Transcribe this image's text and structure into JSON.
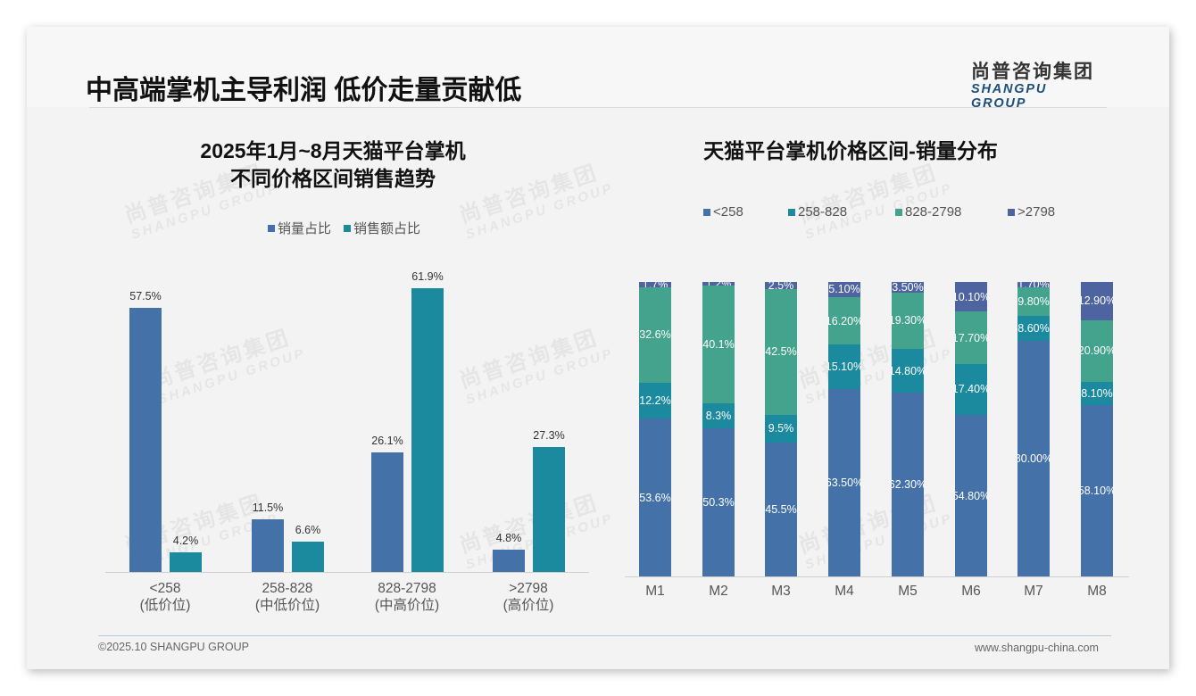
{
  "header": {
    "title": "中高端掌机主导利润 低价走量贡献低",
    "logo_cn": "尚普咨询集团",
    "logo_en": "SHANGPU GROUP"
  },
  "watermark": {
    "cn": "尚普咨询集团",
    "en": "SHANGPU GROUP"
  },
  "left_chart": {
    "title_line1": "2025年1月~8月天猫平台掌机",
    "title_line2": "不同价格区间销售趋势",
    "legend": [
      {
        "label": "销量占比",
        "color": "#4472a8"
      },
      {
        "label": "销售额占比",
        "color": "#1b8a9e"
      }
    ],
    "categories": [
      {
        "line1": "<258",
        "line2": "(低价位)"
      },
      {
        "line1": "258-828",
        "line2": "(中低价位)"
      },
      {
        "line1": "828-2798",
        "line2": "(中高价位)"
      },
      {
        "line1": ">2798",
        "line2": "(高价位)"
      }
    ],
    "labels": {
      "volume": [
        "57.5%",
        "11.5%",
        "26.1%",
        "4.8%"
      ],
      "revenue": [
        "4.2%",
        "6.6%",
        "61.9%",
        "27.3%"
      ]
    }
  },
  "right_chart": {
    "title": "天猫平台掌机价格区间-销量分布",
    "legend": [
      {
        "label": "<258",
        "color": "#4472a8"
      },
      {
        "label": "258-828",
        "color": "#1b8a9e"
      },
      {
        "label": "828-2798",
        "color": "#43a38c"
      },
      {
        "label": ">2798",
        "color": "#4e64a0"
      }
    ],
    "months": [
      "M1",
      "M2",
      "M3",
      "M4",
      "M5",
      "M6",
      "M7",
      "M8"
    ],
    "labels": [
      [
        "53.6%",
        "12.2%",
        "32.6%",
        "1.7%"
      ],
      [
        "50.3%",
        "8.3%",
        "40.1%",
        "1.2%"
      ],
      [
        "45.5%",
        "9.5%",
        "42.5%",
        "2.5%"
      ],
      [
        "63.50%",
        "15.10%",
        "16.20%",
        "5.10%"
      ],
      [
        "62.30%",
        "14.80%",
        "19.30%",
        "3.50%"
      ],
      [
        "54.80%",
        "17.40%",
        "17.70%",
        "10.10%"
      ],
      [
        "80.00%",
        "8.60%",
        "9.80%",
        "1.70%"
      ],
      [
        "58.10%",
        "8.10%",
        "20.90%",
        "12.90%"
      ]
    ]
  },
  "footer": {
    "copyright": "©2025.10 SHANGPU GROUP",
    "website": "www.shangpu-china.com"
  },
  "chart_data": [
    {
      "type": "bar",
      "title": "2025年1月~8月天猫平台掌机不同价格区间销售趋势",
      "categories": [
        "<258 (低价位)",
        "258-828 (中低价位)",
        "828-2798 (中高价位)",
        ">2798 (高价位)"
      ],
      "series": [
        {
          "name": "销量占比",
          "values": [
            57.5,
            11.5,
            26.1,
            4.8
          ],
          "color": "#4472a8"
        },
        {
          "name": "销售额占比",
          "values": [
            4.2,
            6.6,
            61.9,
            27.3
          ],
          "color": "#1b8a9e"
        }
      ],
      "xlabel": "",
      "ylabel": "",
      "unit": "%",
      "ylim": [
        0,
        65
      ],
      "grid": false,
      "legend_position": "top"
    },
    {
      "type": "bar",
      "stacked": true,
      "title": "天猫平台掌机价格区间-销量分布",
      "categories": [
        "M1",
        "M2",
        "M3",
        "M4",
        "M5",
        "M6",
        "M7",
        "M8"
      ],
      "series": [
        {
          "name": "<258",
          "values": [
            53.6,
            50.3,
            45.5,
            63.5,
            62.3,
            54.8,
            80.0,
            58.1
          ],
          "color": "#4472a8"
        },
        {
          "name": "258-828",
          "values": [
            12.2,
            8.3,
            9.5,
            15.1,
            14.8,
            17.4,
            8.6,
            8.1
          ],
          "color": "#1b8a9e"
        },
        {
          "name": "828-2798",
          "values": [
            32.6,
            40.1,
            42.5,
            16.2,
            19.3,
            17.7,
            9.8,
            20.9
          ],
          "color": "#43a38c"
        },
        {
          "name": ">2798",
          "values": [
            1.7,
            1.2,
            2.5,
            5.1,
            3.5,
            10.1,
            1.7,
            12.9
          ],
          "color": "#4e64a0"
        }
      ],
      "xlabel": "",
      "ylabel": "",
      "unit": "%",
      "ylim": [
        0,
        100
      ],
      "grid": false,
      "legend_position": "top"
    }
  ]
}
